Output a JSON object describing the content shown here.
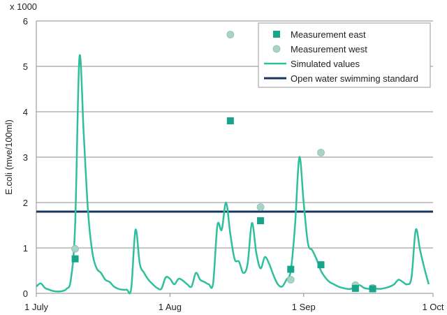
{
  "chart_data": {
    "type": "line",
    "title": "",
    "multiplier_label": "x 1000",
    "ylabel": "E.coli (mve/100ml)",
    "xlabel": "",
    "ylim": [
      0,
      6
    ],
    "xlim": [
      "2020-07-01",
      "2020-10-01"
    ],
    "y_ticks": [
      "0",
      "1",
      "2",
      "3",
      "4",
      "5",
      "6"
    ],
    "x_ticks": [
      {
        "date": "2020-07-01",
        "label": "1 July"
      },
      {
        "date": "2020-08-01",
        "label": "1 Aug"
      },
      {
        "date": "2020-09-01",
        "label": "1 Sep"
      },
      {
        "date": "2020-10-01",
        "label": "1 Oct"
      }
    ],
    "grid": {
      "horizontal": true,
      "vertical": false
    },
    "legend_position": "top-right",
    "colors": {
      "measurement_east": "#17a58c",
      "measurement_west": "#a9d3c8",
      "simulated": "#2ebf9c",
      "standard": "#17375e",
      "grid": "#8c8c8c"
    },
    "legend": [
      {
        "key": "measurement_east",
        "label": "Measurement east",
        "marker": "square"
      },
      {
        "key": "measurement_west",
        "label": "Measurement west",
        "marker": "circle"
      },
      {
        "key": "simulated",
        "label": "Simulated values",
        "marker": "line"
      },
      {
        "key": "standard",
        "label": "Open water swimming standard",
        "marker": "line"
      }
    ],
    "series": [
      {
        "key": "measurement_east",
        "name": "Measurement east",
        "type": "scatter",
        "points": [
          [
            "2020-07-10",
            0.76
          ],
          [
            "2020-08-15",
            3.8
          ],
          [
            "2020-08-22",
            1.6
          ],
          [
            "2020-08-29",
            0.53
          ],
          [
            "2020-09-05",
            0.63
          ],
          [
            "2020-09-13",
            0.11
          ],
          [
            "2020-09-17",
            0.1
          ]
        ]
      },
      {
        "key": "measurement_west",
        "name": "Measurement west",
        "type": "scatter",
        "points": [
          [
            "2020-07-10",
            0.98
          ],
          [
            "2020-08-15",
            5.7
          ],
          [
            "2020-08-22",
            1.9
          ],
          [
            "2020-08-29",
            0.3
          ],
          [
            "2020-09-05",
            3.1
          ],
          [
            "2020-09-13",
            0.18
          ],
          [
            "2020-09-17",
            0.12
          ]
        ]
      },
      {
        "key": "simulated",
        "name": "Simulated values",
        "type": "line",
        "points": [
          [
            "2020-07-01",
            0.15
          ],
          [
            "2020-07-02",
            0.22
          ],
          [
            "2020-07-03",
            0.12
          ],
          [
            "2020-07-04",
            0.08
          ],
          [
            "2020-07-05",
            0.05
          ],
          [
            "2020-07-06",
            0.04
          ],
          [
            "2020-07-07",
            0.05
          ],
          [
            "2020-07-08",
            0.1
          ],
          [
            "2020-07-09",
            0.3
          ],
          [
            "2020-07-10",
            1.5
          ],
          [
            "2020-07-11",
            5.2
          ],
          [
            "2020-07-12",
            3.5
          ],
          [
            "2020-07-13",
            1.8
          ],
          [
            "2020-07-14",
            0.9
          ],
          [
            "2020-07-15",
            0.55
          ],
          [
            "2020-07-16",
            0.45
          ],
          [
            "2020-07-17",
            0.3
          ],
          [
            "2020-07-18",
            0.25
          ],
          [
            "2020-07-19",
            0.15
          ],
          [
            "2020-07-20",
            0.1
          ],
          [
            "2020-07-21",
            0.08
          ],
          [
            "2020-07-22",
            0.08
          ],
          [
            "2020-07-23",
            0.1
          ],
          [
            "2020-07-24",
            1.4
          ],
          [
            "2020-07-25",
            0.65
          ],
          [
            "2020-07-26",
            0.45
          ],
          [
            "2020-07-27",
            0.3
          ],
          [
            "2020-07-28",
            0.2
          ],
          [
            "2020-07-29",
            0.12
          ],
          [
            "2020-07-30",
            0.1
          ],
          [
            "2020-07-31",
            0.35
          ],
          [
            "2020-08-01",
            0.32
          ],
          [
            "2020-08-02",
            0.2
          ],
          [
            "2020-08-03",
            0.32
          ],
          [
            "2020-08-04",
            0.28
          ],
          [
            "2020-08-05",
            0.2
          ],
          [
            "2020-08-06",
            0.15
          ],
          [
            "2020-08-07",
            0.45
          ],
          [
            "2020-08-08",
            0.3
          ],
          [
            "2020-08-09",
            0.25
          ],
          [
            "2020-08-10",
            0.2
          ],
          [
            "2020-08-11",
            0.22
          ],
          [
            "2020-08-12",
            1.5
          ],
          [
            "2020-08-13",
            1.4
          ],
          [
            "2020-08-14",
            2.0
          ],
          [
            "2020-08-15",
            1.3
          ],
          [
            "2020-08-16",
            0.75
          ],
          [
            "2020-08-17",
            0.7
          ],
          [
            "2020-08-18",
            0.45
          ],
          [
            "2020-08-19",
            0.65
          ],
          [
            "2020-08-20",
            1.55
          ],
          [
            "2020-08-21",
            0.9
          ],
          [
            "2020-08-22",
            0.55
          ],
          [
            "2020-08-23",
            0.8
          ],
          [
            "2020-08-24",
            0.65
          ],
          [
            "2020-08-25",
            0.4
          ],
          [
            "2020-08-26",
            0.2
          ],
          [
            "2020-08-27",
            0.15
          ],
          [
            "2020-08-28",
            0.3
          ],
          [
            "2020-08-29",
            0.5
          ],
          [
            "2020-08-30",
            1.5
          ],
          [
            "2020-08-31",
            3.0
          ],
          [
            "2020-09-01",
            2.0
          ],
          [
            "2020-09-02",
            1.1
          ],
          [
            "2020-09-03",
            0.95
          ],
          [
            "2020-09-04",
            0.75
          ],
          [
            "2020-09-05",
            0.5
          ],
          [
            "2020-09-06",
            0.35
          ],
          [
            "2020-09-07",
            0.25
          ],
          [
            "2020-09-08",
            0.2
          ],
          [
            "2020-09-09",
            0.15
          ],
          [
            "2020-09-10",
            0.12
          ],
          [
            "2020-09-11",
            0.1
          ],
          [
            "2020-09-12",
            0.1
          ],
          [
            "2020-09-13",
            0.15
          ],
          [
            "2020-09-14",
            0.18
          ],
          [
            "2020-09-15",
            0.12
          ],
          [
            "2020-09-16",
            0.1
          ],
          [
            "2020-09-17",
            0.1
          ],
          [
            "2020-09-18",
            0.1
          ],
          [
            "2020-09-19",
            0.1
          ],
          [
            "2020-09-20",
            0.12
          ],
          [
            "2020-09-21",
            0.15
          ],
          [
            "2020-09-22",
            0.2
          ],
          [
            "2020-09-23",
            0.3
          ],
          [
            "2020-09-24",
            0.25
          ],
          [
            "2020-09-25",
            0.2
          ],
          [
            "2020-09-26",
            0.35
          ],
          [
            "2020-09-27",
            1.4
          ],
          [
            "2020-09-28",
            0.95
          ],
          [
            "2020-09-29",
            0.55
          ],
          [
            "2020-09-30",
            0.2
          ]
        ]
      },
      {
        "key": "standard",
        "name": "Open water swimming standard",
        "type": "line",
        "points": [
          [
            "2020-07-01",
            1.8
          ],
          [
            "2020-10-01",
            1.8
          ]
        ]
      }
    ]
  }
}
